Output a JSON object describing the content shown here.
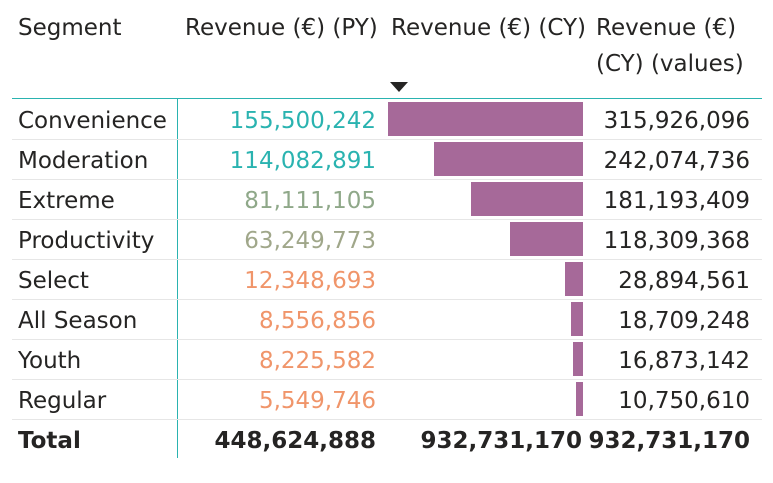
{
  "headers": {
    "segment": "Segment",
    "py": "Revenue (€) (PY)",
    "cy": "Revenue (€) (CY)",
    "cyv_line1": "Revenue (€)",
    "cyv_line2": "(CY) (values)"
  },
  "sort": {
    "column": "Revenue (€) (CY)",
    "direction": "descending"
  },
  "colors": {
    "accent_line": "#2ab3b0",
    "bar": "#a66999",
    "py_high": "#2ab3b0",
    "py_mid": "#8fa889",
    "py_low": "#f0956a"
  },
  "rows": [
    {
      "segment": "Convenience",
      "py": "155,500,242",
      "py_value": 155500242,
      "cy_value": 315926096,
      "cy": "315,926,096",
      "py_color": "#2ab3b0"
    },
    {
      "segment": "Moderation",
      "py": "114,082,891",
      "py_value": 114082891,
      "cy_value": 242074736,
      "cy": "242,074,736",
      "py_color": "#2ab3b0"
    },
    {
      "segment": "Extreme",
      "py": "81,111,105",
      "py_value": 81111105,
      "cy_value": 181193409,
      "cy": "181,193,409",
      "py_color": "#8fa889"
    },
    {
      "segment": "Productivity",
      "py": "63,249,773",
      "py_value": 63249773,
      "cy_value": 118309368,
      "cy": "118,309,368",
      "py_color": "#a0a78a"
    },
    {
      "segment": "Select",
      "py": "12,348,693",
      "py_value": 12348693,
      "cy_value": 28894561,
      "cy": "28,894,561",
      "py_color": "#f0956a"
    },
    {
      "segment": "All Season",
      "py": "8,556,856",
      "py_value": 8556856,
      "cy_value": 18709248,
      "cy": "18,709,248",
      "py_color": "#f0956a"
    },
    {
      "segment": "Youth",
      "py": "8,225,582",
      "py_value": 8225582,
      "cy_value": 16873142,
      "cy": "16,873,142",
      "py_color": "#f0956a"
    },
    {
      "segment": "Regular",
      "py": "5,549,746",
      "py_value": 5549746,
      "cy_value": 10750610,
      "cy": "10,750,610",
      "py_color": "#f0956a"
    }
  ],
  "total": {
    "label": "Total",
    "py": "448,624,888",
    "cy": "932,731,170",
    "cyv": "932,731,170"
  }
}
